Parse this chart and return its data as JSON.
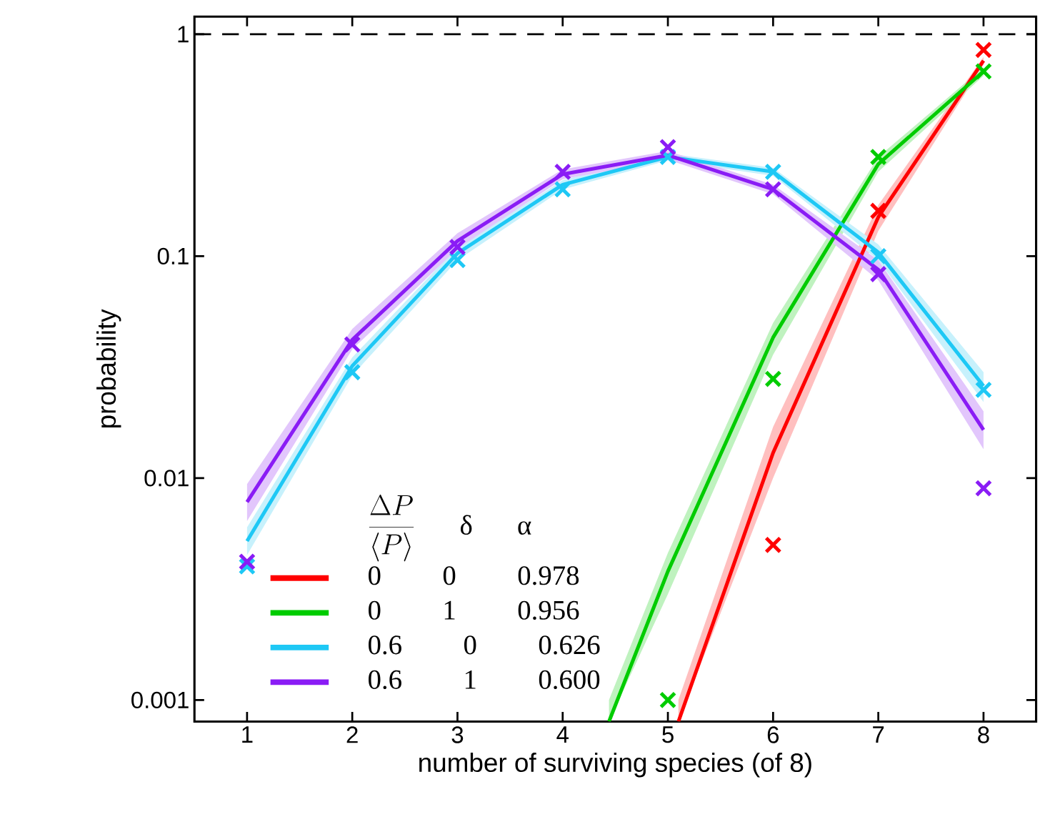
{
  "chart_data": {
    "type": "line",
    "xlabel": "number of surviving species (of 8)",
    "ylabel": "probability",
    "legend_title": "\\frac{\\Delta P}{\\langle P\\rangle}",
    "annotations": [
      "δ",
      "α"
    ],
    "xlim": [
      0.5,
      8.5
    ],
    "xticks": [
      1,
      2,
      3,
      4,
      5,
      6,
      7,
      8
    ],
    "ylim": [
      0.0008,
      1.2
    ],
    "yticks": [
      0.001,
      0.01,
      0.1,
      1
    ],
    "log": "y",
    "grid": false,
    "legend": "bottom left",
    "ref_lines": [
      {
        "axis": "y",
        "value": 1,
        "color": "#000000",
        "line_style": "dashed"
      }
    ],
    "series": [
      {
        "name": "0 0 0.978",
        "color": "#ff0000",
        "x": [
          5.1,
          6,
          7,
          8
        ],
        "values": [
          0.0008,
          0.013,
          0.15,
          0.76
        ],
        "lower": [
          0.0008,
          0.01,
          0.13,
          0.73
        ],
        "upper": [
          0.001,
          0.017,
          0.17,
          0.79
        ]
      },
      {
        "name": "0 1 0.956",
        "color": "#00cc00",
        "x": [
          4.44,
          5,
          6,
          7,
          8
        ],
        "values": [
          0.0008,
          0.0038,
          0.043,
          0.26,
          0.68
        ],
        "lower": [
          0.0008,
          0.003,
          0.036,
          0.24,
          0.65
        ],
        "upper": [
          0.001,
          0.0046,
          0.05,
          0.28,
          0.71
        ]
      },
      {
        "name": "0.6 0 0.626",
        "color": "#1ec8f5",
        "x": [
          1,
          2,
          3,
          4,
          5,
          6,
          7,
          8
        ],
        "values": [
          0.0052,
          0.032,
          0.103,
          0.21,
          0.28,
          0.24,
          0.104,
          0.026
        ],
        "lower": [
          0.0045,
          0.029,
          0.096,
          0.2,
          0.27,
          0.23,
          0.096,
          0.022
        ],
        "upper": [
          0.006,
          0.035,
          0.11,
          0.22,
          0.29,
          0.25,
          0.113,
          0.03
        ]
      },
      {
        "name": "0.6 1 0.600",
        "color": "#8a1cf5",
        "x": [
          1,
          2,
          3,
          4,
          5,
          6,
          7,
          8
        ],
        "values": [
          0.0078,
          0.042,
          0.117,
          0.234,
          0.285,
          0.2,
          0.087,
          0.0165
        ],
        "lower": [
          0.0064,
          0.038,
          0.108,
          0.222,
          0.272,
          0.19,
          0.078,
          0.0135
        ],
        "upper": [
          0.0094,
          0.047,
          0.127,
          0.246,
          0.298,
          0.21,
          0.096,
          0.02
        ]
      },
      {
        "type": "scatter",
        "marker": "cross",
        "color": "#ff0000",
        "x": [
          6,
          7,
          8
        ],
        "values": [
          0.005,
          0.16,
          0.85
        ]
      },
      {
        "type": "scatter",
        "marker": "cross",
        "color": "#00cc00",
        "x": [
          5,
          6,
          7,
          8
        ],
        "values": [
          0.001,
          0.028,
          0.28,
          0.68
        ]
      },
      {
        "type": "scatter",
        "marker": "cross",
        "color": "#1ec8f5",
        "x": [
          1,
          2,
          3,
          4,
          5,
          6,
          7,
          8
        ],
        "values": [
          0.004,
          0.03,
          0.096,
          0.2,
          0.28,
          0.24,
          0.1,
          0.025
        ]
      },
      {
        "type": "scatter",
        "marker": "cross",
        "color": "#8a1cf5",
        "x": [
          1,
          2,
          3,
          4,
          5,
          6,
          7,
          8
        ],
        "values": [
          0.0042,
          0.04,
          0.11,
          0.24,
          0.31,
          0.2,
          0.083,
          0.009
        ]
      }
    ]
  }
}
